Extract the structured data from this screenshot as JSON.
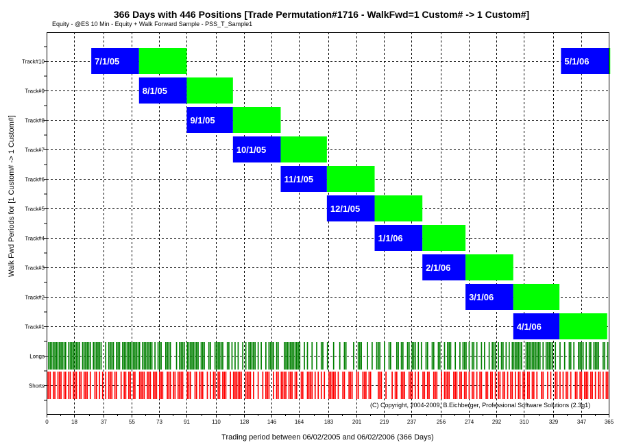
{
  "chart_data": {
    "type": "gantt",
    "title": "366 Days with 446 Positions [Trade Permutation#1716 - WalkFwd=1 Custom# -> 1 Custom#]",
    "subtitle": "Equity - @ES 10 Min - Equity + Walk Forward Sample - PSS_T_Sample1",
    "xlabel": "Trading period between 06/02/2005 and 06/02/2006 (366 Days)",
    "ylabel": "Walk Fwd Periods for [1 Custom# -> 1 Custom#]",
    "copyright": "(C) Copyright, 2004-2009, B.Eichberger, Professional Software Solutions (2.3g1)",
    "xlim": [
      0,
      365
    ],
    "x_ticks": [
      "0",
      "18",
      "37",
      "55",
      "73",
      "91",
      "110",
      "128",
      "146",
      "164",
      "183",
      "201",
      "219",
      "237",
      "256",
      "274",
      "292",
      "310",
      "329",
      "347",
      "365"
    ],
    "grid": true,
    "colors": {
      "in_sample": "#0000ff",
      "out_of_sample": "#00ff00",
      "longs": "#008000",
      "shorts": "#ff0000",
      "grid": "#000000"
    },
    "tracks": [
      {
        "name": "Track#10",
        "periods": [
          {
            "label": "7/1/05",
            "in_start": 29,
            "in_end": 60,
            "out_end": 91
          },
          {
            "label": "5/1/06",
            "in_start": 334,
            "in_end": 365,
            "out_end": 366
          }
        ]
      },
      {
        "name": "Track#9",
        "periods": [
          {
            "label": "8/1/05",
            "in_start": 60,
            "in_end": 91,
            "out_end": 121
          }
        ]
      },
      {
        "name": "Track#8",
        "periods": [
          {
            "label": "9/1/05",
            "in_start": 91,
            "in_end": 121,
            "out_end": 152
          }
        ]
      },
      {
        "name": "Track#7",
        "periods": [
          {
            "label": "10/1/05",
            "in_start": 121,
            "in_end": 152,
            "out_end": 182
          }
        ]
      },
      {
        "name": "Track#6",
        "periods": [
          {
            "label": "11/1/05",
            "in_start": 152,
            "in_end": 182,
            "out_end": 213
          }
        ]
      },
      {
        "name": "Track#5",
        "periods": [
          {
            "label": "12/1/05",
            "in_start": 182,
            "in_end": 213,
            "out_end": 244
          }
        ]
      },
      {
        "name": "Track#4",
        "periods": [
          {
            "label": "1/1/06",
            "in_start": 213,
            "in_end": 244,
            "out_end": 272
          }
        ]
      },
      {
        "name": "Track#3",
        "periods": [
          {
            "label": "2/1/06",
            "in_start": 244,
            "in_end": 272,
            "out_end": 303
          }
        ]
      },
      {
        "name": "Track#2",
        "periods": [
          {
            "label": "3/1/06",
            "in_start": 272,
            "in_end": 303,
            "out_end": 333
          }
        ]
      },
      {
        "name": "Track#1",
        "periods": [
          {
            "label": "4/1/06",
            "in_start": 303,
            "in_end": 333,
            "out_end": 364
          }
        ]
      }
    ],
    "trade_rows": [
      {
        "name": "Longs",
        "days": [
          1,
          2,
          3,
          4,
          5,
          6,
          7,
          8,
          9,
          10,
          11,
          12,
          14,
          15,
          16,
          17,
          18,
          19,
          20,
          21,
          23,
          24,
          25,
          26,
          27,
          28,
          30,
          31,
          32,
          33,
          34,
          35,
          38,
          40,
          41,
          42,
          43,
          45,
          46,
          47,
          49,
          50,
          51,
          52,
          53,
          54,
          55,
          56,
          57,
          58,
          59,
          60,
          62,
          63,
          64,
          65,
          66,
          67,
          68,
          70,
          72,
          73,
          74,
          77,
          78,
          79,
          80,
          84,
          86,
          87,
          88,
          89,
          91,
          92,
          93,
          94,
          95,
          96,
          97,
          98,
          100,
          101,
          102,
          105,
          106,
          109,
          110,
          111,
          112,
          113,
          114,
          117,
          118,
          120,
          122,
          124,
          127,
          129,
          131,
          132,
          133,
          134,
          135,
          137,
          139,
          142,
          144,
          145,
          146,
          147,
          149,
          150,
          154,
          155,
          156,
          157,
          158,
          159,
          160,
          161,
          162,
          163,
          164,
          167,
          169,
          172,
          175,
          178,
          179,
          182,
          186,
          190,
          193,
          194,
          199,
          202,
          203,
          204,
          208,
          211,
          214,
          215,
          216,
          219,
          222,
          223,
          227,
          228,
          230,
          231,
          234,
          235,
          237,
          238,
          239,
          241,
          243,
          246,
          247,
          250,
          251,
          254,
          255,
          258,
          260,
          261,
          262,
          265,
          268,
          270,
          271,
          272,
          274,
          276,
          277,
          279,
          282,
          284,
          287,
          289,
          290,
          291,
          293,
          295,
          296,
          298,
          300,
          302,
          303,
          304,
          305,
          306,
          307,
          308,
          311,
          312,
          313,
          314,
          315,
          316,
          317,
          318,
          319,
          320,
          322,
          324,
          325,
          326,
          327,
          328,
          330,
          333,
          336,
          339,
          340,
          342,
          345,
          346,
          347,
          348,
          350,
          352,
          353,
          355,
          356,
          357,
          358,
          361,
          362,
          364
        ]
      },
      {
        "name": "Shorts",
        "days": [
          0,
          1,
          2,
          4,
          5,
          7,
          8,
          9,
          11,
          12,
          14,
          15,
          17,
          18,
          19,
          21,
          22,
          24,
          25,
          26,
          28,
          31,
          32,
          34,
          36,
          38,
          40,
          41,
          42,
          44,
          45,
          48,
          50,
          51,
          53,
          54,
          56,
          57,
          60,
          61,
          62,
          63,
          65,
          66,
          67,
          69,
          70,
          71,
          73,
          74,
          75,
          78,
          79,
          80,
          82,
          83,
          85,
          86,
          87,
          88,
          91,
          92,
          93,
          96,
          97,
          99,
          100,
          101,
          104,
          106,
          108,
          109,
          111,
          112,
          114,
          115,
          116,
          119,
          121,
          122,
          123,
          124,
          125,
          126,
          129,
          130,
          131,
          132,
          134,
          137,
          140,
          142,
          143,
          144,
          147,
          149,
          150,
          152,
          153,
          154,
          155,
          157,
          158,
          159,
          161,
          162,
          165,
          166,
          169,
          170,
          171,
          172,
          174,
          176,
          178,
          180,
          183,
          184,
          185,
          186,
          187,
          189,
          192,
          193,
          196,
          197,
          198,
          201,
          202,
          205,
          206,
          207,
          209,
          210,
          215,
          216,
          217,
          220,
          224,
          226,
          227,
          230,
          231,
          232,
          235,
          236,
          237,
          239,
          241,
          244,
          245,
          247,
          248,
          251,
          252,
          253,
          256,
          258,
          259,
          260,
          261,
          264,
          265,
          266,
          268,
          269,
          271,
          272,
          274,
          276,
          277,
          279,
          281,
          282,
          285,
          286,
          288,
          289,
          291,
          293,
          294,
          296,
          297,
          299,
          301,
          302,
          304,
          306,
          307,
          309,
          310,
          312,
          313,
          315,
          316,
          318,
          321,
          322,
          325,
          327,
          330,
          331,
          333,
          335,
          337,
          338,
          340,
          343,
          344,
          346,
          347,
          349,
          350,
          351,
          353,
          354,
          356,
          358,
          359,
          361,
          363,
          364
        ]
      }
    ]
  }
}
